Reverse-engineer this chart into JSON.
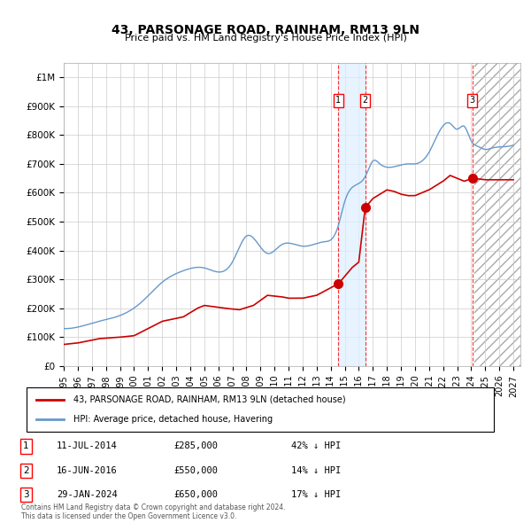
{
  "title": "43, PARSONAGE ROAD, RAINHAM, RM13 9LN",
  "subtitle": "Price paid vs. HM Land Registry's House Price Index (HPI)",
  "xmin": 1995.0,
  "xmax": 2027.5,
  "ymin": 0,
  "ymax": 1050000,
  "yticks": [
    0,
    100000,
    200000,
    300000,
    400000,
    500000,
    600000,
    700000,
    800000,
    900000,
    1000000
  ],
  "ytick_labels": [
    "£0",
    "£100K",
    "£200K",
    "£300K",
    "£400K",
    "£500K",
    "£600K",
    "£700K",
    "£800K",
    "£900K",
    "£1M"
  ],
  "xtick_years": [
    1995,
    1996,
    1997,
    1998,
    1999,
    2000,
    2001,
    2002,
    2003,
    2004,
    2005,
    2006,
    2007,
    2008,
    2009,
    2010,
    2011,
    2012,
    2013,
    2014,
    2015,
    2016,
    2017,
    2018,
    2019,
    2020,
    2021,
    2022,
    2023,
    2024,
    2025,
    2026,
    2027
  ],
  "sale_dates": [
    "2014-07-11",
    "2016-06-16",
    "2024-01-29"
  ],
  "sale_prices": [
    285000,
    550000,
    650000
  ],
  "sale_labels": [
    "1",
    "2",
    "3"
  ],
  "legend_red": "43, PARSONAGE ROAD, RAINHAM, RM13 9LN (detached house)",
  "legend_blue": "HPI: Average price, detached house, Havering",
  "table_rows": [
    [
      "1",
      "11-JUL-2014",
      "£285,000",
      "42% ↓ HPI"
    ],
    [
      "2",
      "16-JUN-2016",
      "£550,000",
      "14% ↓ HPI"
    ],
    [
      "3",
      "29-JAN-2024",
      "£650,000",
      "17% ↓ HPI"
    ]
  ],
  "footnote": "Contains HM Land Registry data © Crown copyright and database right 2024.\nThis data is licensed under the Open Government Licence v3.0.",
  "hatch_start_year": 2024.25,
  "shade_between_1_and_2_start": 2014.53,
  "shade_between_1_and_2_end": 2016.46,
  "red_line_color": "#cc0000",
  "blue_line_color": "#6699cc",
  "dot_color": "#cc0000",
  "grid_color": "#cccccc",
  "background_color": "#ffffff"
}
